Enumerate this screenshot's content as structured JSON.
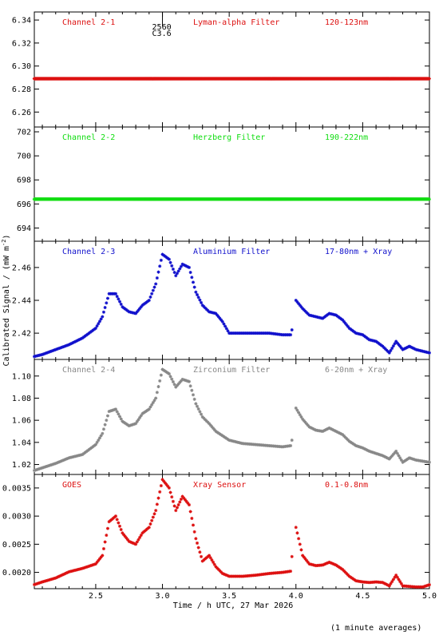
{
  "chart_data": [
    {
      "type": "scatter",
      "labels": [
        "Channel 2-1",
        "Lyman-alpha Filter",
        "120-123nm"
      ],
      "color": "#dd1111",
      "ylim": [
        6.247,
        6.347
      ],
      "yticks": [
        6.26,
        6.28,
        6.3,
        6.32,
        6.34
      ],
      "ytick_labels": [
        "6.26",
        "6.28",
        "6.30",
        "6.32",
        "6.34"
      ],
      "series": [
        {
          "x": [
            2.0,
            5.0
          ],
          "y": [
            6.289,
            6.289
          ],
          "style": "flat"
        }
      ],
      "annotation": {
        "x": 3.0,
        "lines": [
          "2560",
          "C3.6"
        ]
      }
    },
    {
      "type": "scatter",
      "labels": [
        "Channel 2-2",
        "Herzberg Filter",
        "190-222nm"
      ],
      "color": "#11dd11",
      "ylim": [
        692.9,
        702.4
      ],
      "yticks": [
        694,
        696,
        698,
        700,
        702
      ],
      "ytick_labels": [
        "694",
        "696",
        "698",
        "700",
        "702"
      ],
      "series": [
        {
          "x": [
            2.0,
            5.0
          ],
          "y": [
            696.4,
            696.4
          ],
          "style": "flat"
        }
      ]
    },
    {
      "type": "scatter",
      "labels": [
        "Channel 2-3",
        "Aluminium Filter",
        "17-80nm + Xray"
      ],
      "color": "#1111cc",
      "ylim": [
        2.404,
        2.476
      ],
      "yticks": [
        2.42,
        2.44,
        2.46
      ],
      "ytick_labels": [
        "2.42",
        "2.44",
        "2.46"
      ],
      "series": [
        {
          "x": [
            2.0,
            2.1,
            2.2,
            2.3,
            2.4,
            2.5,
            2.55,
            2.6,
            2.65,
            2.7,
            2.75,
            2.8,
            2.85,
            2.9,
            2.95,
            3.0,
            3.05,
            3.1,
            3.15,
            3.2,
            3.25,
            3.3,
            3.35,
            3.4,
            3.45,
            3.5,
            3.6,
            3.7,
            3.8,
            3.9,
            3.96,
            3.99,
            4.0,
            4.05,
            4.1,
            4.15,
            4.2,
            4.25,
            4.3,
            4.35,
            4.4,
            4.45,
            4.5,
            4.55,
            4.6,
            4.65,
            4.7,
            4.75,
            4.8,
            4.85,
            4.9,
            4.95,
            5.0
          ],
          "y": [
            2.405,
            2.407,
            2.41,
            2.413,
            2.417,
            2.423,
            2.43,
            2.444,
            2.444,
            2.436,
            2.433,
            2.432,
            2.437,
            2.44,
            2.45,
            2.468,
            2.465,
            2.455,
            2.462,
            2.46,
            2.445,
            2.437,
            2.433,
            2.432,
            2.427,
            2.42,
            2.42,
            2.42,
            2.42,
            2.419,
            2.419,
            2.428,
            2.44,
            2.435,
            2.431,
            2.43,
            2.429,
            2.432,
            2.431,
            2.428,
            2.423,
            2.42,
            2.419,
            2.416,
            2.415,
            2.412,
            2.408,
            2.415,
            2.41,
            2.412,
            2.41,
            2.409,
            2.408
          ]
        }
      ]
    },
    {
      "type": "scatter",
      "labels": [
        "Channel 2-4",
        "Zirconium Filter",
        "6-20nm + Xray"
      ],
      "color": "#888888",
      "ylim": [
        1.011,
        1.115
      ],
      "yticks": [
        1.02,
        1.04,
        1.06,
        1.08,
        1.1
      ],
      "ytick_labels": [
        "1.02",
        "1.04",
        "1.06",
        "1.08",
        "1.10"
      ],
      "series": [
        {
          "x": [
            2.0,
            2.1,
            2.2,
            2.3,
            2.4,
            2.5,
            2.55,
            2.6,
            2.65,
            2.7,
            2.75,
            2.8,
            2.85,
            2.9,
            2.95,
            3.0,
            3.05,
            3.1,
            3.15,
            3.2,
            3.25,
            3.3,
            3.35,
            3.4,
            3.45,
            3.5,
            3.6,
            3.7,
            3.8,
            3.9,
            3.96,
            3.99,
            4.0,
            4.05,
            4.1,
            4.15,
            4.2,
            4.25,
            4.3,
            4.35,
            4.4,
            4.45,
            4.5,
            4.55,
            4.6,
            4.65,
            4.7,
            4.75,
            4.8,
            4.85,
            4.9,
            4.95,
            5.0
          ],
          "y": [
            1.013,
            1.017,
            1.021,
            1.026,
            1.029,
            1.038,
            1.048,
            1.068,
            1.07,
            1.059,
            1.055,
            1.057,
            1.066,
            1.07,
            1.08,
            1.106,
            1.102,
            1.09,
            1.097,
            1.095,
            1.075,
            1.063,
            1.057,
            1.05,
            1.046,
            1.042,
            1.039,
            1.038,
            1.037,
            1.036,
            1.037,
            1.052,
            1.071,
            1.061,
            1.054,
            1.051,
            1.05,
            1.053,
            1.05,
            1.047,
            1.041,
            1.037,
            1.035,
            1.032,
            1.03,
            1.028,
            1.025,
            1.032,
            1.022,
            1.026,
            1.024,
            1.023,
            1.022
          ]
        }
      ]
    },
    {
      "type": "scatter",
      "labels": [
        "GOES",
        "Xray Sensor",
        "0.1-0.8nm"
      ],
      "color": "#dd1111",
      "ylim": [
        0.00171,
        0.00374
      ],
      "yticks": [
        0.002,
        0.0025,
        0.003,
        0.0035
      ],
      "ytick_labels": [
        "0.0020",
        "0.0025",
        "0.0030",
        "0.0035"
      ],
      "series": [
        {
          "x": [
            2.0,
            2.1,
            2.2,
            2.3,
            2.4,
            2.5,
            2.55,
            2.6,
            2.65,
            2.7,
            2.75,
            2.8,
            2.85,
            2.9,
            2.95,
            3.0,
            3.05,
            3.1,
            3.15,
            3.2,
            3.25,
            3.3,
            3.35,
            3.4,
            3.45,
            3.5,
            3.6,
            3.7,
            3.8,
            3.9,
            3.96,
            3.99,
            4.0,
            4.05,
            4.1,
            4.15,
            4.2,
            4.25,
            4.3,
            4.35,
            4.4,
            4.45,
            4.5,
            4.55,
            4.6,
            4.65,
            4.7,
            4.75,
            4.8,
            4.85,
            4.9,
            4.95,
            5.0
          ],
          "y": [
            0.00175,
            0.00183,
            0.0019,
            0.00201,
            0.00207,
            0.00215,
            0.0023,
            0.0029,
            0.003,
            0.0027,
            0.00255,
            0.0025,
            0.0027,
            0.0028,
            0.0031,
            0.00365,
            0.0035,
            0.0031,
            0.00335,
            0.0032,
            0.0026,
            0.0022,
            0.0023,
            0.0021,
            0.00198,
            0.00193,
            0.00193,
            0.00195,
            0.00198,
            0.002,
            0.00202,
            0.0028,
            0.0028,
            0.0023,
            0.00215,
            0.00212,
            0.00213,
            0.00218,
            0.00213,
            0.00205,
            0.00193,
            0.00185,
            0.00183,
            0.00182,
            0.00183,
            0.00182,
            0.00176,
            0.00195,
            0.00176,
            0.00175,
            0.00174,
            0.00174,
            0.00178
          ]
        }
      ]
    }
  ],
  "x_axis": {
    "xlim": [
      2.04,
      5.0
    ],
    "ticks": [
      2.5,
      3.0,
      3.5,
      4.0,
      4.5,
      5.0
    ],
    "tick_labels": [
      "2.5",
      "3.0",
      "3.5",
      "4.0",
      "4.5",
      "5.0"
    ],
    "label": "Time / h UTC, 27 Mar 2026"
  },
  "y_axis_label": "Calibrated Signal / (mW m",
  "y_axis_label_sup": "-2",
  "y_axis_label_end": ")",
  "footer": "(1 minute averages)"
}
